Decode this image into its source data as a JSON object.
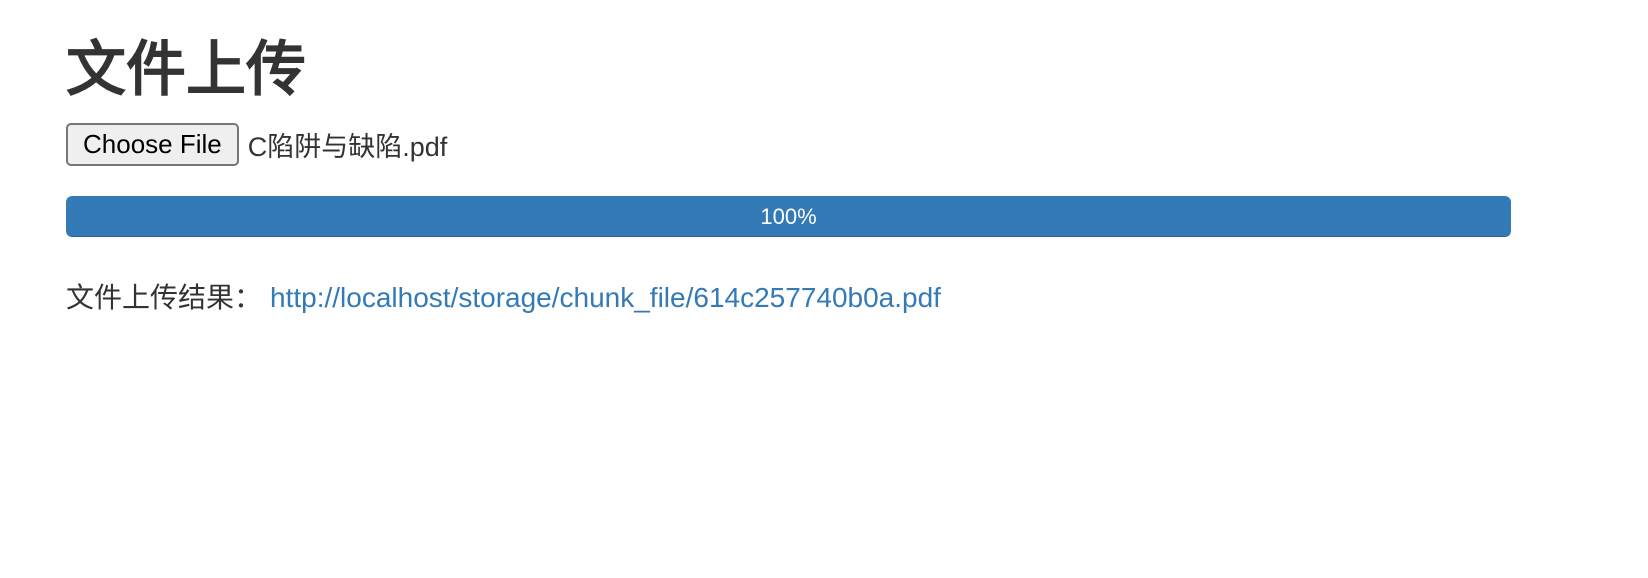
{
  "page": {
    "title": "文件上传"
  },
  "upload": {
    "choose_button_label": "Choose File",
    "selected_file": "C陷阱与缺陷.pdf"
  },
  "progress": {
    "value": 100,
    "label": "100%",
    "color": "#337ab7"
  },
  "result": {
    "label": "文件上传结果：",
    "url": "http://localhost/storage/chunk_file/614c257740b0a.pdf",
    "link_color": "#337ab7"
  }
}
